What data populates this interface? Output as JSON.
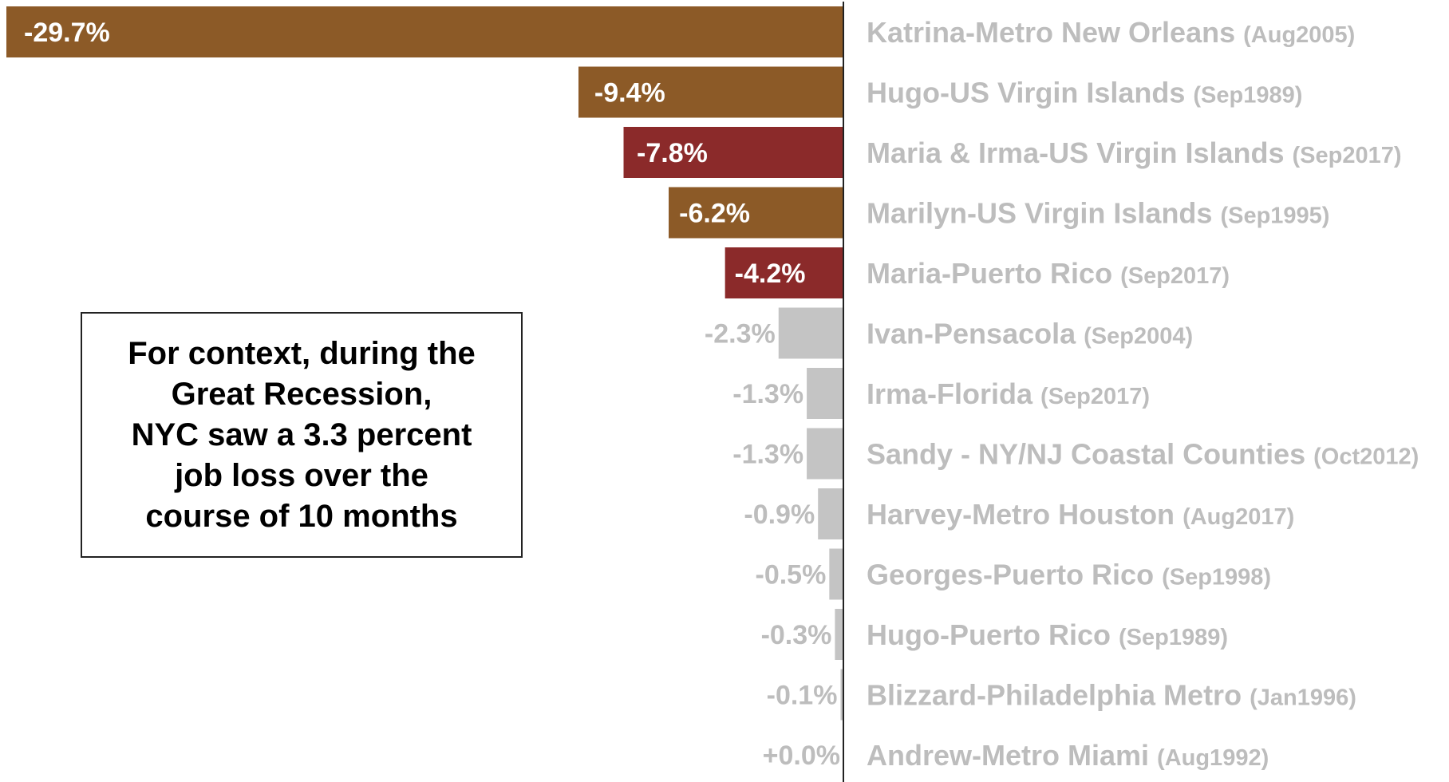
{
  "chart_data": {
    "type": "bar",
    "orientation": "horizontal",
    "unit": "%",
    "xlim": [
      -29.7,
      0
    ],
    "grid": false,
    "colors": {
      "brown": "#8c5a27",
      "red": "#8b2a2a",
      "gray": "#c4c4c4",
      "label_gray": "#bdbdbd",
      "axis": "#222222"
    },
    "bars": [
      {
        "event": "Katrina-Metro New Orleans",
        "date": "(Aug2005)",
        "value": -29.7,
        "label": "-29.7%",
        "color": "brown"
      },
      {
        "event": "Hugo-US Virgin Islands",
        "date": "(Sep1989)",
        "value": -9.4,
        "label": "-9.4%",
        "color": "brown"
      },
      {
        "event": "Maria & Irma-US Virgin Islands",
        "date": "(Sep2017)",
        "value": -7.8,
        "label": "-7.8%",
        "color": "red"
      },
      {
        "event": "Marilyn-US Virgin Islands",
        "date": "(Sep1995)",
        "value": -6.2,
        "label": "-6.2%",
        "color": "brown"
      },
      {
        "event": "Maria-Puerto Rico",
        "date": "(Sep2017)",
        "value": -4.2,
        "label": "-4.2%",
        "color": "red"
      },
      {
        "event": "Ivan-Pensacola",
        "date": "(Sep2004)",
        "value": -2.3,
        "label": "-2.3%",
        "color": "gray"
      },
      {
        "event": "Irma-Florida",
        "date": "(Sep2017)",
        "value": -1.3,
        "label": "-1.3%",
        "color": "gray"
      },
      {
        "event": "Sandy - NY/NJ Coastal Counties",
        "date": "(Oct2012)",
        "value": -1.3,
        "label": "-1.3%",
        "color": "gray"
      },
      {
        "event": "Harvey-Metro Houston",
        "date": "(Aug2017)",
        "value": -0.9,
        "label": "-0.9%",
        "color": "gray"
      },
      {
        "event": "Georges-Puerto Rico",
        "date": "(Sep1998)",
        "value": -0.5,
        "label": "-0.5%",
        "color": "gray"
      },
      {
        "event": "Hugo-Puerto Rico",
        "date": "(Sep1989)",
        "value": -0.3,
        "label": "-0.3%",
        "color": "gray"
      },
      {
        "event": "Blizzard-Philadelphia Metro",
        "date": "(Jan1996)",
        "value": -0.1,
        "label": "-0.1%",
        "color": "gray"
      },
      {
        "event": "Andrew-Metro Miami",
        "date": "(Aug1992)",
        "value": 0.0,
        "label": "+0.0%",
        "color": "gray"
      }
    ],
    "annotation": "For context, during the\nGreat Recession,\nNYC saw a 3.3 percent\njob loss over the\ncourse of 10 months"
  }
}
